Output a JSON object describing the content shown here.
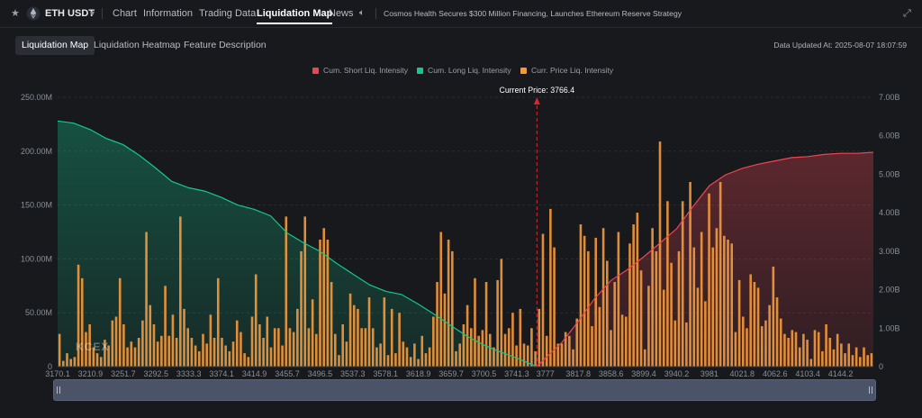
{
  "header": {
    "symbol": "ETH USDT",
    "nav": [
      "Chart",
      "Information",
      "Trading Data",
      "Liquidation Map",
      "News"
    ],
    "active_nav": "Liquidation Map",
    "news": "Cosmos Health Secures $300 Million Financing, Launches Ethereum Reserve Strategy"
  },
  "subtabs": [
    "Liquidation Map",
    "Liquidation Heatmap",
    "Feature Description"
  ],
  "active_subtab": "Liquidation Map",
  "data_updated": "Data Updated At: 2025-08-07 18:07:59",
  "watermark": "KCEX",
  "colors": {
    "short": "#f0454f",
    "long": "#15c78b",
    "price_bars": "#f59a3c",
    "price_line": "#d9262f"
  },
  "chart_data": {
    "type": "bar",
    "legend": [
      "Cum. Short Liq. Intensity",
      "Cum. Long Liq. Intensity",
      "Curr. Price Liq. Intensity"
    ],
    "legend_position": "top-center",
    "current_price_label": "Current Price: 3766.4",
    "current_price": 3766.4,
    "x_ticks": [
      "3170.1",
      "3210.9",
      "3251.7",
      "3292.5",
      "3333.3",
      "3374.1",
      "3414.9",
      "3455.7",
      "3496.5",
      "3537.3",
      "3578.1",
      "3618.9",
      "3659.7",
      "3700.5",
      "3741.3",
      "3777",
      "3817.8",
      "3858.6",
      "3899.4",
      "3940.2",
      "3981",
      "4021.8",
      "4062.6",
      "4103.4",
      "4144.2"
    ],
    "x_range": [
      3170.1,
      4185
    ],
    "y_left_ticks": [
      "0",
      "50.00M",
      "100.00M",
      "150.00M",
      "200.00M",
      "250.00M"
    ],
    "y_left_range": [
      0,
      250000000
    ],
    "y_right_ticks": [
      "0",
      "1.00B",
      "2.00B",
      "3.00B",
      "4.00B",
      "5.00B",
      "6.00B",
      "7.00B"
    ],
    "y_right_range": [
      0,
      7000000000
    ],
    "cum_long": {
      "name": "Cum. Long Liq. Intensity",
      "x": [
        3170.1,
        3190,
        3210.9,
        3230,
        3251.7,
        3272,
        3292.5,
        3312,
        3333.3,
        3353,
        3374.1,
        3394,
        3414.9,
        3435,
        3455.7,
        3476,
        3496.5,
        3517,
        3537.3,
        3558,
        3578.1,
        3598,
        3618.9,
        3640,
        3659.7,
        3680,
        3700.5,
        3720,
        3741.3,
        3760,
        3766.4
      ],
      "values": [
        228000000,
        226000000,
        220000000,
        212000000,
        206000000,
        196000000,
        184000000,
        172000000,
        166000000,
        163000000,
        157000000,
        150000000,
        146000000,
        140000000,
        124000000,
        115000000,
        107000000,
        96000000,
        86000000,
        76000000,
        70000000,
        67000000,
        58000000,
        48000000,
        38000000,
        28000000,
        20000000,
        14000000,
        8000000,
        2000000,
        0
      ]
    },
    "cum_short": {
      "name": "Cum. Short Liq. Intensity",
      "x": [
        3766.4,
        3777,
        3797,
        3817.8,
        3838,
        3858.6,
        3879,
        3899.4,
        3920,
        3940.2,
        3960,
        3981,
        4001,
        4021.8,
        4042,
        4062.6,
        4083,
        4103.4,
        4124,
        4144.2,
        4165,
        4185
      ],
      "values": [
        0,
        8000000,
        22000000,
        42000000,
        63000000,
        80000000,
        90000000,
        102000000,
        115000000,
        128000000,
        148000000,
        168000000,
        178000000,
        184000000,
        188000000,
        191000000,
        194000000,
        195000000,
        197000000,
        198000000,
        198000000,
        199000000
      ]
    },
    "bars": {
      "name": "Curr. Price Liq. Intensity",
      "values": [
        0.85,
        0.15,
        0.35,
        0.2,
        0.25,
        2.65,
        2.3,
        0.9,
        1.1,
        0.5,
        0.35,
        0.25,
        0.7,
        0.55,
        1.2,
        1.3,
        2.3,
        1.1,
        0.5,
        0.65,
        0.5,
        0.75,
        1.2,
        3.5,
        1.6,
        1.1,
        0.65,
        0.8,
        2.1,
        0.8,
        1.35,
        0.75,
        3.9,
        1.5,
        1.0,
        0.75,
        0.55,
        0.4,
        0.85,
        0.6,
        1.35,
        0.75,
        2.3,
        0.75,
        0.55,
        0.4,
        0.65,
        1.2,
        0.9,
        0.35,
        0.25,
        1.3,
        2.4,
        1.1,
        0.75,
        1.3,
        0.5,
        1.0,
        1.0,
        0.55,
        3.9,
        1.0,
        0.9,
        1.5,
        3.0,
        3.9,
        1.0,
        1.75,
        0.85,
        3.3,
        3.6,
        3.3,
        2.2,
        0.85,
        0.3,
        1.1,
        0.65,
        1.9,
        1.6,
        1.5,
        1.0,
        1.0,
        1.8,
        1.0,
        0.5,
        0.6,
        1.8,
        0.3,
        1.5,
        0.35,
        1.4,
        0.65,
        0.5,
        0.25,
        0.6,
        0.2,
        0.8,
        0.35,
        0.5,
        1.3,
        2.2,
        3.5,
        1.9,
        3.3,
        3.0,
        0.4,
        0.6,
        1.1,
        1.6,
        1.0,
        2.3,
        0.8,
        0.95,
        2.2,
        0.85,
        0.5,
        2.25,
        2.8,
        0.85,
        1.0,
        1.4,
        0.55,
        1.5,
        0.6,
        0.55,
        1.0,
        0.4,
        1.5,
        3.45,
        0.8,
        4.1,
        3.1,
        0.6,
        0.6,
        0.9,
        0.8,
        0.45,
        1.25,
        3.7,
        3.4,
        3.0,
        1.05,
        3.35,
        1.55,
        3.6,
        2.75,
        0.95,
        2.2,
        3.5,
        1.35,
        1.3,
        3.2,
        3.7,
        4.0,
        2.5,
        0.45,
        2.1,
        3.6,
        3.0,
        5.85,
        2.0,
        4.3,
        2.7,
        1.2,
        3.0,
        4.3,
        1.15,
        4.8,
        3.1,
        2.05,
        3.5,
        1.7,
        4.5,
        3.1,
        3.6,
        4.8,
        3.4,
        3.3,
        3.2,
        0.9,
        2.25,
        1.3,
        1.0,
        2.4,
        2.2,
        2.05,
        1.05,
        1.2,
        1.6,
        2.6,
        1.8,
        1.25,
        0.85,
        0.75,
        0.95,
        0.9,
        0.5,
        0.85,
        0.7,
        0.2,
        0.95,
        0.9,
        0.4,
        1.1,
        0.75,
        0.45,
        0.85,
        0.6,
        0.35,
        0.6,
        0.3,
        0.5,
        0.25,
        0.5,
        0.3,
        0.35
      ],
      "unit": "B"
    }
  }
}
